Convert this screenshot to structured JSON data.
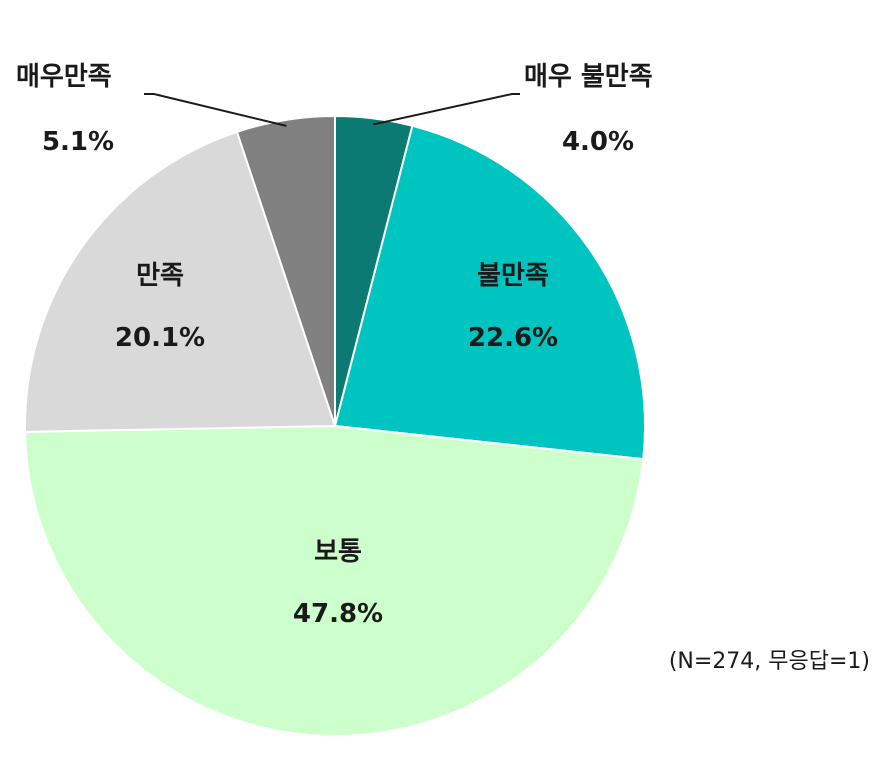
{
  "chart_data": {
    "type": "pie",
    "title": "",
    "categories": [
      "매우 불만족",
      "불만족",
      "보통",
      "만족",
      "매우만족"
    ],
    "values": [
      4.0,
      22.6,
      47.8,
      20.1,
      5.1
    ],
    "value_labels": [
      "4.0%",
      "22.6%",
      "47.8%",
      "20.1%",
      "5.1%"
    ],
    "colors": [
      "#0a7a72",
      "#00c4bf",
      "#ccffcc",
      "#d9d9d9",
      "#808080"
    ],
    "start_angle": "12 o'clock",
    "direction": "clockwise",
    "note": "(N=274, 무응답=1)"
  }
}
